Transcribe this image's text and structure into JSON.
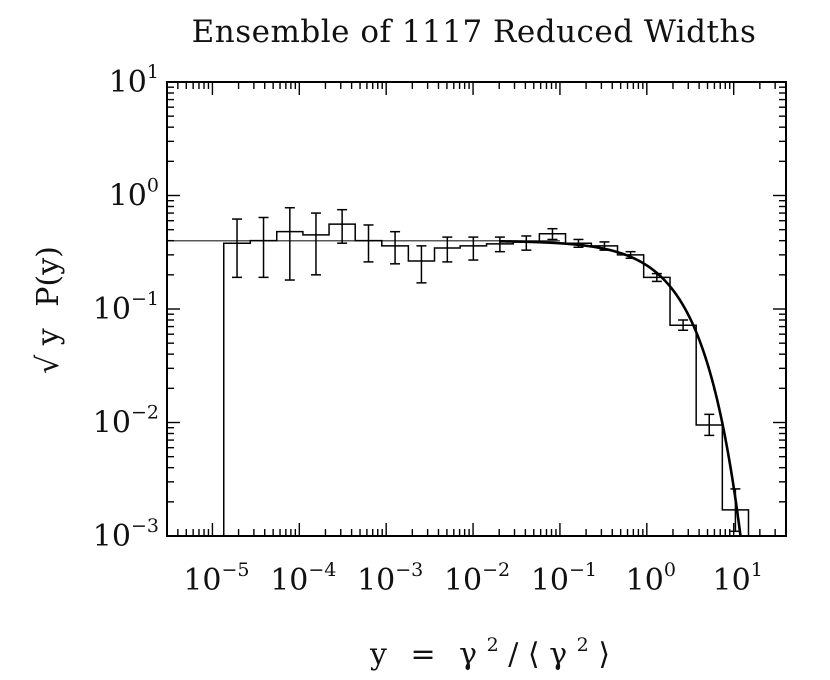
{
  "chart_data": {
    "type": "step",
    "title": "Ensemble of 1117 Reduced Widths",
    "x_scale": "log",
    "y_scale": "log",
    "xlim": [
      3e-06,
      40
    ],
    "ylim": [
      0.001,
      10
    ],
    "x_ticks": [
      {
        "base": "10",
        "exp": "−5",
        "value": 1e-05
      },
      {
        "base": "10",
        "exp": "−4",
        "value": 0.0001
      },
      {
        "base": "10",
        "exp": "−3",
        "value": 0.001
      },
      {
        "base": "10",
        "exp": "−2",
        "value": 0.01
      },
      {
        "base": "10",
        "exp": "−1",
        "value": 0.1
      },
      {
        "base": "10",
        "exp": "0",
        "value": 1
      },
      {
        "base": "10",
        "exp": "1",
        "value": 10
      }
    ],
    "y_ticks": [
      {
        "base": "10",
        "exp": "1",
        "value": 10
      },
      {
        "base": "10",
        "exp": "0",
        "value": 1
      },
      {
        "base": "10",
        "exp": "−1",
        "value": 0.1
      },
      {
        "base": "10",
        "exp": "−2",
        "value": 0.01
      },
      {
        "base": "10",
        "exp": "−3",
        "value": 0.001
      }
    ],
    "xlabel_parts": {
      "lhs": "y",
      "eq": "=",
      "g": "γ",
      "sup": "2",
      "slash": "/",
      "lang": "⟨",
      "g2": "γ",
      "sup2": "2",
      "rang": "⟩"
    },
    "ylabel_parts": {
      "root": "√",
      "y": "y",
      "p": "P(y)"
    },
    "histogram": [
      {
        "x0": 1.35e-05,
        "x1": 2.73e-05,
        "y": 0.38,
        "err": [
          0.19,
          0.62
        ]
      },
      {
        "x0": 2.73e-05,
        "x1": 5.5e-05,
        "y": 0.4,
        "err": [
          0.19,
          0.64
        ]
      },
      {
        "x0": 5.5e-05,
        "x1": 0.00011,
        "y": 0.48,
        "err": [
          0.18,
          0.78
        ]
      },
      {
        "x0": 0.00011,
        "x1": 0.00022,
        "y": 0.45,
        "err": [
          0.2,
          0.7
        ]
      },
      {
        "x0": 0.00022,
        "x1": 0.00044,
        "y": 0.56,
        "err": [
          0.38,
          0.75
        ]
      },
      {
        "x0": 0.00044,
        "x1": 0.00089,
        "y": 0.4,
        "err": [
          0.26,
          0.55
        ]
      },
      {
        "x0": 0.00089,
        "x1": 0.0018,
        "y": 0.36,
        "err": [
          0.25,
          0.48
        ]
      },
      {
        "x0": 0.0018,
        "x1": 0.0036,
        "y": 0.265,
        "err": [
          0.17,
          0.36
        ]
      },
      {
        "x0": 0.0036,
        "x1": 0.0071,
        "y": 0.345,
        "err": [
          0.26,
          0.43
        ]
      },
      {
        "x0": 0.0071,
        "x1": 0.0143,
        "y": 0.36,
        "err": [
          0.27,
          0.43
        ]
      },
      {
        "x0": 0.0143,
        "x1": 0.029,
        "y": 0.375,
        "err": [
          0.32,
          0.43
        ]
      },
      {
        "x0": 0.029,
        "x1": 0.058,
        "y": 0.39,
        "err": [
          0.33,
          0.44
        ]
      },
      {
        "x0": 0.058,
        "x1": 0.116,
        "y": 0.46,
        "err": [
          0.41,
          0.51
        ]
      },
      {
        "x0": 0.116,
        "x1": 0.23,
        "y": 0.38,
        "err": [
          0.35,
          0.41
        ]
      },
      {
        "x0": 0.23,
        "x1": 0.46,
        "y": 0.36,
        "err": [
          0.33,
          0.39
        ]
      },
      {
        "x0": 0.46,
        "x1": 0.92,
        "y": 0.3,
        "err": [
          0.28,
          0.32
        ]
      },
      {
        "x0": 0.92,
        "x1": 1.85,
        "y": 0.19,
        "err": [
          0.175,
          0.205
        ]
      },
      {
        "x0": 1.85,
        "x1": 3.7,
        "y": 0.072,
        "err": [
          0.065,
          0.08
        ]
      },
      {
        "x0": 3.7,
        "x1": 7.4,
        "y": 0.0095,
        "err": [
          0.0077,
          0.0118
        ]
      },
      {
        "x0": 7.4,
        "x1": 14.8,
        "y": 0.0017,
        "err": [
          0.0011,
          0.0026
        ]
      }
    ],
    "flat_reference": {
      "y": 0.399,
      "x_from": 3e-06,
      "x_to": 0.1
    },
    "curve": "sqrt(y)*P(y) = exp(-y/2)/sqrt(2*pi)"
  }
}
